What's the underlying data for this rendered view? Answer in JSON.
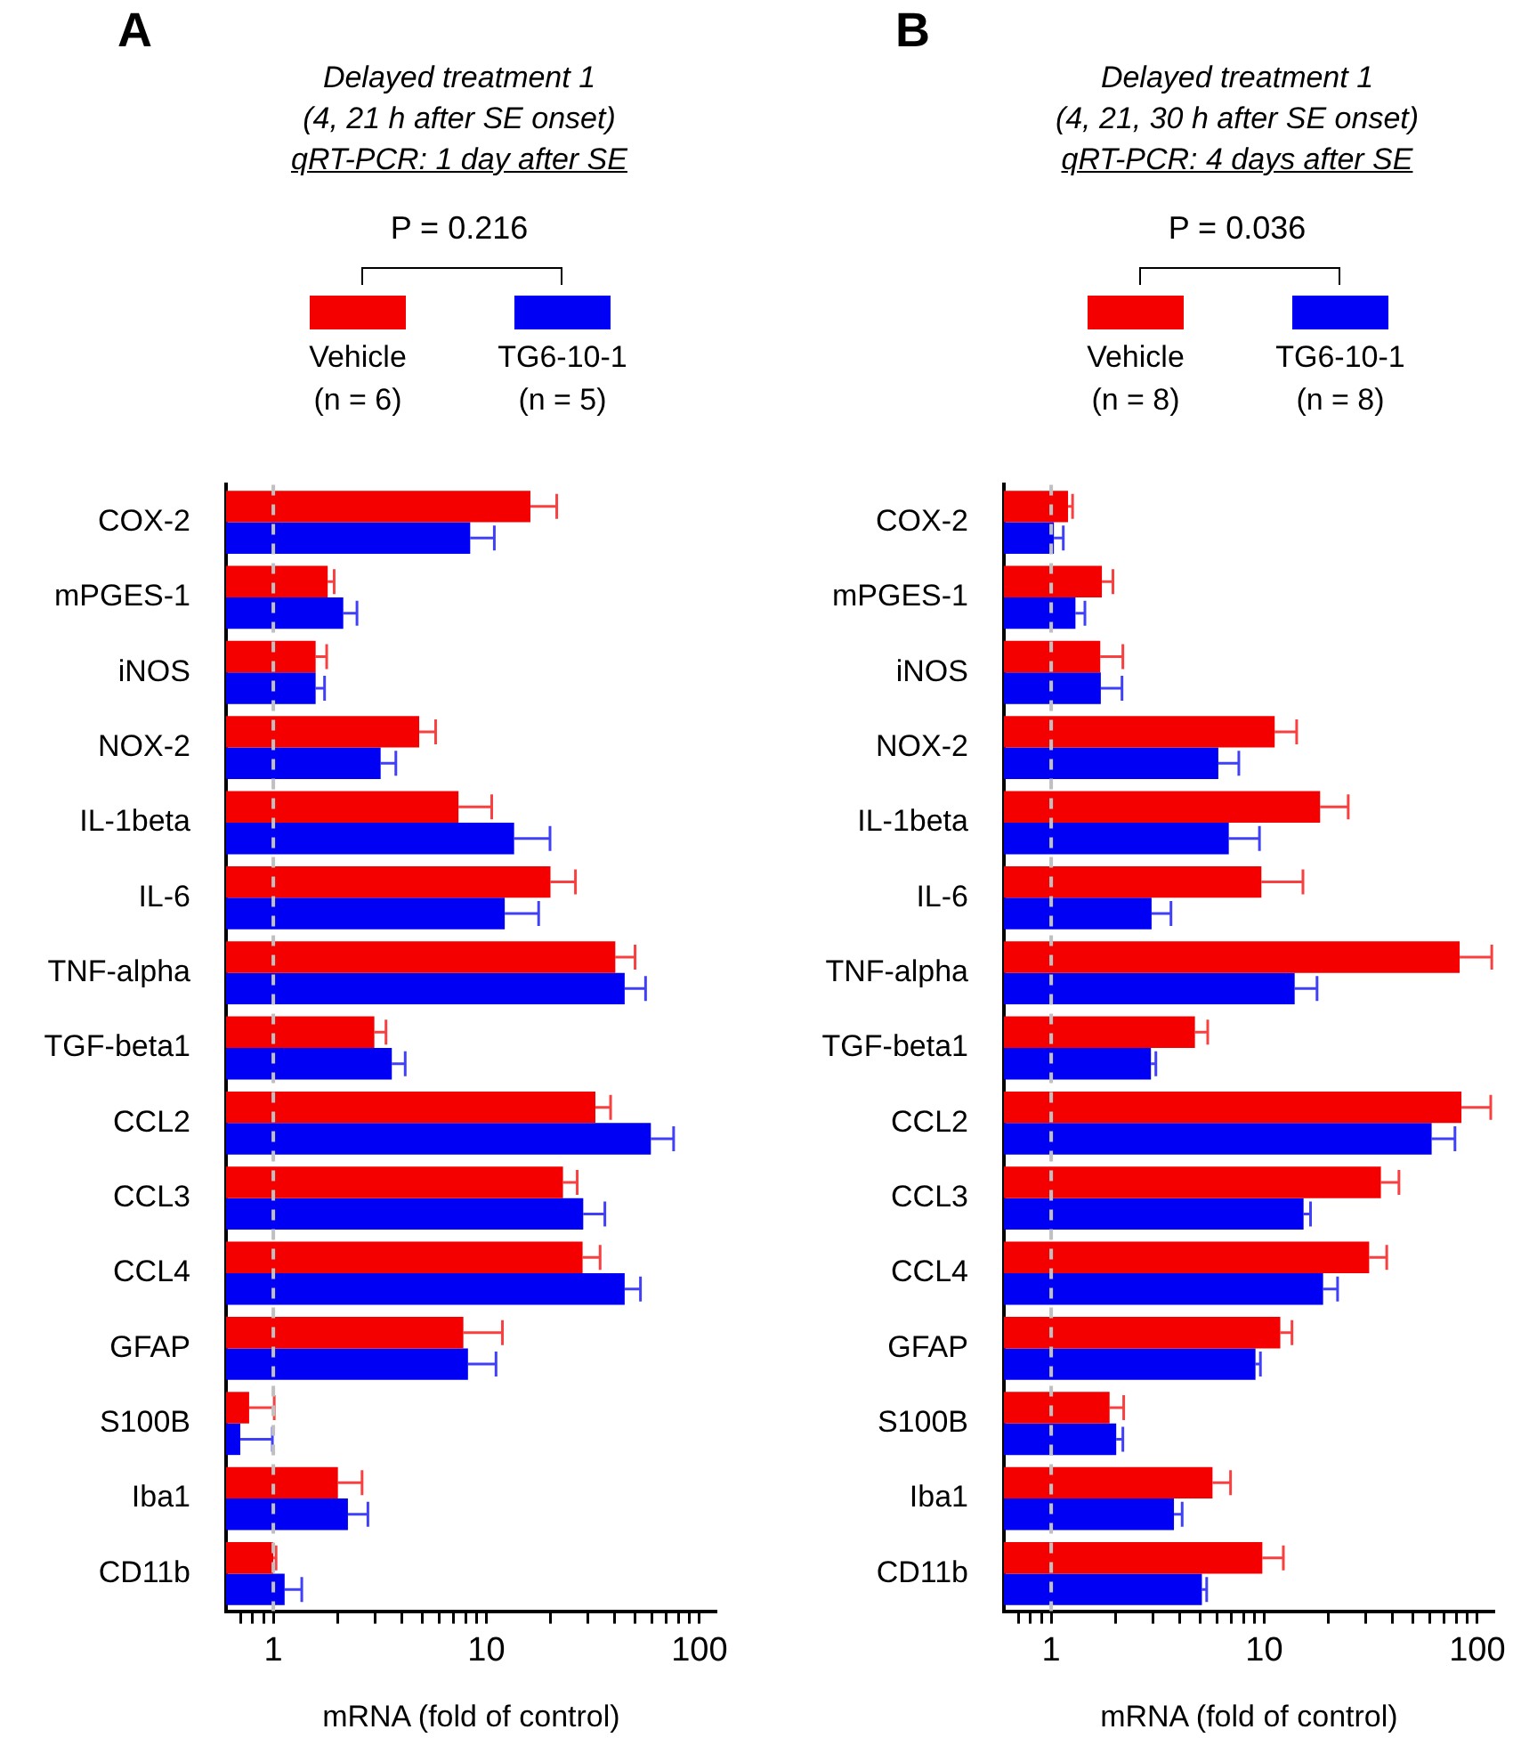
{
  "chart_data": [
    {
      "type": "bar",
      "title": "A",
      "subtitle": "Delayed treatment 1\n(4, 21 h after SE onset)\nqRT-PCR: 1 day after SE",
      "xlabel": "mRNA (fold of control)",
      "orientation": "horizontal",
      "log": "x",
      "legend": "top",
      "annotations": [
        "P = 0.216"
      ],
      "categories": [
        "COX-2",
        "mPGES-1",
        "iNOS",
        "NOX-2",
        "IL-1beta",
        "IL-6",
        "TNF-alpha",
        "TGF-beta1",
        "CCL2",
        "CCL3",
        "CCL4",
        "GFAP",
        "S100B",
        "Iba1",
        "CD11b"
      ],
      "xlim": [
        0.6,
        120
      ],
      "xticks": [
        {
          "value": 0.7,
          "label": null
        },
        {
          "value": 0.8,
          "label": null
        },
        {
          "value": 0.9,
          "label": null
        },
        1,
        {
          "value": 2,
          "label": null
        },
        {
          "value": 3,
          "label": null
        },
        {
          "value": 4,
          "label": null
        },
        {
          "value": 5,
          "label": null
        },
        {
          "value": 6,
          "label": null
        },
        {
          "value": 7,
          "label": null
        },
        {
          "value": 8,
          "label": null
        },
        {
          "value": 9,
          "label": null
        },
        10,
        {
          "value": 20,
          "label": null
        },
        {
          "value": 30,
          "label": null
        },
        {
          "value": 40,
          "label": null
        },
        {
          "value": 50,
          "label": null
        },
        {
          "value": 60,
          "label": null
        },
        {
          "value": 70,
          "label": null
        },
        {
          "value": 80,
          "label": null
        },
        {
          "value": 90,
          "label": null
        },
        100
      ],
      "ref_lines": [
        {
          "axis": "x",
          "value": 1,
          "color": "#c0c0c0",
          "line_style": "dashed"
        }
      ],
      "series": [
        {
          "name": "Vehicle\n(n = 6)",
          "color": "#f50000",
          "values": [
            16.1,
            1.8,
            1.58,
            4.84,
            7.4,
            20.0,
            40.3,
            2.98,
            32.5,
            22.9,
            28.3,
            7.8,
            0.77,
            2.01,
            1.0
          ],
          "errors": [
            [
              16.1,
              21.4
            ],
            [
              1.8,
              1.93
            ],
            [
              1.58,
              1.78
            ],
            [
              4.84,
              5.78
            ],
            [
              7.4,
              10.6
            ],
            [
              20.0,
              26.2
            ],
            [
              40.3,
              49.9
            ],
            [
              2.98,
              3.38
            ],
            [
              32.5,
              38.3
            ],
            [
              22.9,
              26.7
            ],
            [
              28.3,
              34.2
            ],
            [
              7.8,
              11.9
            ],
            [
              0.77,
              1.01
            ],
            [
              2.01,
              2.61
            ],
            [
              1.0,
              1.03
            ]
          ]
        },
        {
          "name": "TG6-10-1\n(n = 5)",
          "color": "#0000f5",
          "values": [
            8.4,
            2.13,
            1.58,
            3.19,
            13.5,
            12.2,
            44.6,
            3.6,
            59.2,
            28.5,
            44.6,
            8.2,
            0.7,
            2.24,
            1.13
          ],
          "errors": [
            [
              8.4,
              10.9
            ],
            [
              2.13,
              2.47
            ],
            [
              1.58,
              1.74
            ],
            [
              3.19,
              3.76
            ],
            [
              13.5,
              19.9
            ],
            [
              12.2,
              17.6
            ],
            [
              44.6,
              55.9
            ],
            [
              3.6,
              4.16
            ],
            [
              59.2,
              75.7
            ],
            [
              28.5,
              36.0
            ],
            [
              44.6,
              52.9
            ],
            [
              8.2,
              11.1
            ],
            [
              0.7,
              0.99
            ],
            [
              2.24,
              2.78
            ],
            [
              1.13,
              1.36
            ]
          ]
        }
      ]
    },
    {
      "type": "bar",
      "title": "B",
      "subtitle": "Delayed treatment 1\n(4, 21, 30 h after SE onset)\nqRT-PCR: 4 days after SE",
      "xlabel": "mRNA (fold of control)",
      "orientation": "horizontal",
      "log": "x",
      "legend": "top",
      "annotations": [
        "P = 0.036"
      ],
      "categories": [
        "COX-2",
        "mPGES-1",
        "iNOS",
        "NOX-2",
        "IL-1beta",
        "IL-6",
        "TNF-alpha",
        "TGF-beta1",
        "CCL2",
        "CCL3",
        "CCL4",
        "GFAP",
        "S100B",
        "Iba1",
        "CD11b"
      ],
      "xlim": [
        0.6,
        120
      ],
      "xticks": [
        {
          "value": 0.7,
          "label": null
        },
        {
          "value": 0.8,
          "label": null
        },
        {
          "value": 0.9,
          "label": null
        },
        1,
        {
          "value": 2,
          "label": null
        },
        {
          "value": 3,
          "label": null
        },
        {
          "value": 4,
          "label": null
        },
        {
          "value": 5,
          "label": null
        },
        {
          "value": 6,
          "label": null
        },
        {
          "value": 7,
          "label": null
        },
        {
          "value": 8,
          "label": null
        },
        {
          "value": 9,
          "label": null
        },
        10,
        {
          "value": 20,
          "label": null
        },
        {
          "value": 30,
          "label": null
        },
        {
          "value": 40,
          "label": null
        },
        {
          "value": 50,
          "label": null
        },
        {
          "value": 60,
          "label": null
        },
        {
          "value": 70,
          "label": null
        },
        {
          "value": 80,
          "label": null
        },
        {
          "value": 90,
          "label": null
        },
        100
      ],
      "ref_lines": [
        {
          "axis": "x",
          "value": 1,
          "color": "#c0c0c0",
          "line_style": "dashed"
        }
      ],
      "series": [
        {
          "name": "Vehicle\n(n = 8)",
          "color": "#f50000",
          "values": [
            1.2,
            1.73,
            1.7,
            11.2,
            18.3,
            9.7,
            82.7,
            4.73,
            84.3,
            35.3,
            31.1,
            11.9,
            1.88,
            5.72,
            9.8
          ],
          "errors": [
            [
              1.2,
              1.26
            ],
            [
              1.73,
              1.95
            ],
            [
              1.7,
              2.17
            ],
            [
              11.2,
              14.2
            ],
            [
              18.3,
              24.8
            ],
            [
              9.7,
              15.2
            ],
            [
              82.7,
              117
            ],
            [
              4.73,
              5.43
            ],
            [
              84.3,
              115.7
            ],
            [
              35.3,
              42.9
            ],
            [
              31.1,
              37.6
            ],
            [
              11.9,
              13.5
            ],
            [
              1.88,
              2.19
            ],
            [
              5.72,
              6.95
            ],
            [
              9.8,
              12.3
            ]
          ]
        },
        {
          "name": "TG6-10-1\n(n = 8)",
          "color": "#0000f5",
          "values": [
            1.03,
            1.3,
            1.71,
            6.09,
            6.82,
            2.96,
            13.9,
            2.94,
            61.1,
            15.3,
            18.9,
            9.1,
            2.02,
            3.77,
            5.1
          ],
          "errors": [
            [
              1.03,
              1.14
            ],
            [
              1.3,
              1.44
            ],
            [
              1.71,
              2.15
            ],
            [
              6.09,
              7.6
            ],
            [
              6.82,
              9.5
            ],
            [
              2.96,
              3.65
            ],
            [
              13.9,
              17.7
            ],
            [
              2.94,
              3.1
            ],
            [
              61.1,
              78.6
            ],
            [
              15.3,
              16.5
            ],
            [
              18.9,
              22.1
            ],
            [
              9.1,
              9.6
            ],
            [
              2.02,
              2.17
            ],
            [
              3.77,
              4.12
            ],
            [
              5.1,
              5.37
            ]
          ]
        }
      ]
    }
  ]
}
